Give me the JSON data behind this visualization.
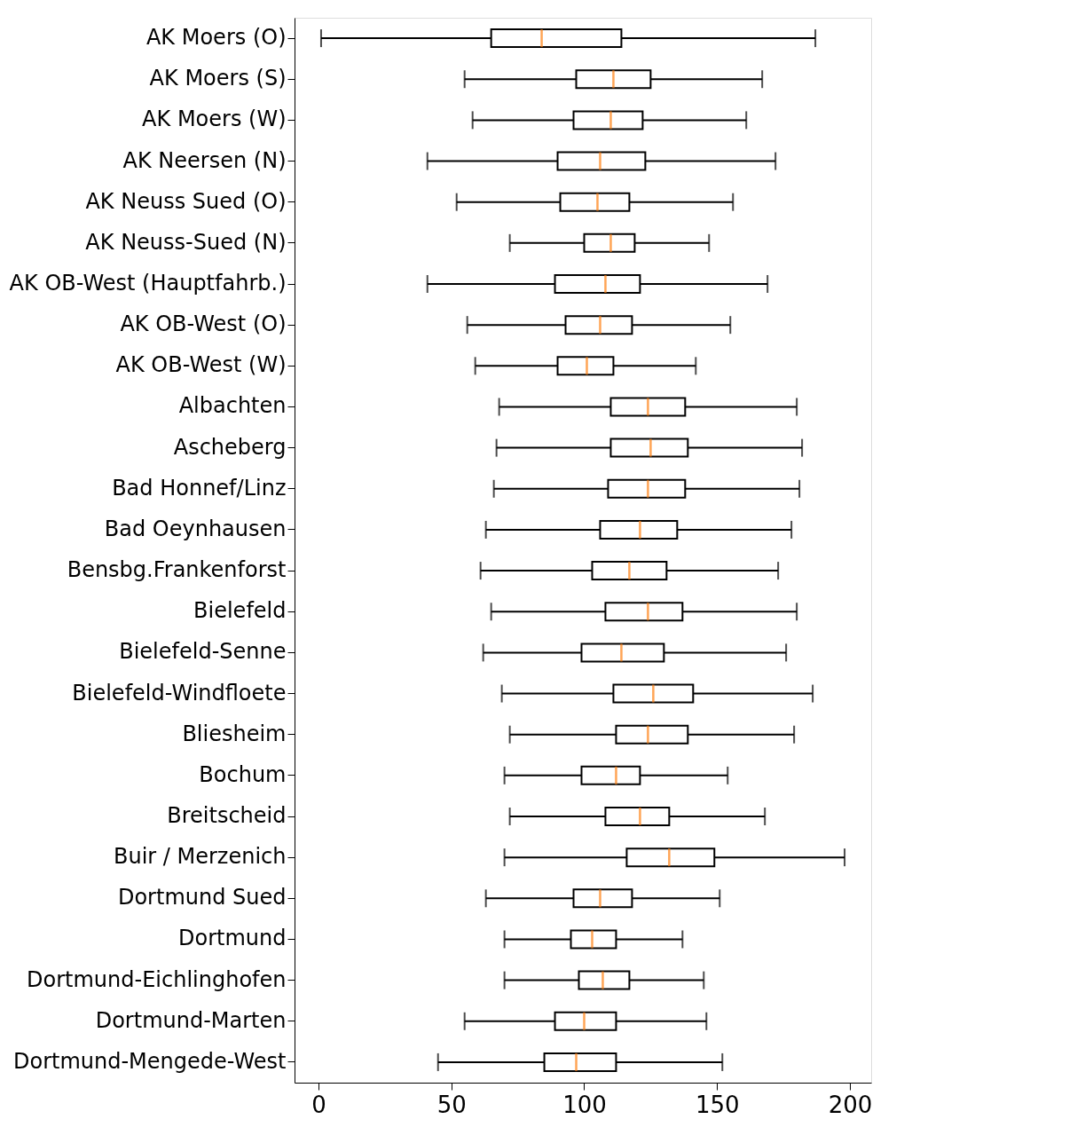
{
  "chart_data": {
    "type": "box",
    "orientation": "horizontal",
    "grid": false,
    "categories": [
      "AK Moers (O)",
      "AK Moers (S)",
      "AK Moers (W)",
      "AK Neersen (N)",
      "AK Neuss Sued (O)",
      "AK Neuss-Sued (N)",
      "AK OB-West (Hauptfahrb.)",
      "AK OB-West (O)",
      "AK OB-West (W)",
      "Albachten",
      "Ascheberg",
      "Bad Honnef/Linz",
      "Bad Oeynhausen",
      "Bensbg.Frankenforst",
      "Bielefeld",
      "Bielefeld-Senne",
      "Bielefeld-Windfloete",
      "Bliesheim",
      "Bochum",
      "Breitscheid",
      "Buir / Merzenich",
      "Dortmund Sued",
      "Dortmund",
      "Dortmund-Eichlinghofen",
      "Dortmund-Marten",
      "Dortmund-Mengede-West"
    ],
    "xlim": [
      -9,
      208
    ],
    "xticks": [
      0,
      50,
      100,
      150,
      200
    ],
    "series": [
      {
        "color": "#000000",
        "boxes": [
          {
            "low": 1,
            "q1": 65,
            "median": 84,
            "q3": 114,
            "high": 187
          },
          {
            "low": 55,
            "q1": 97,
            "median": 111,
            "q3": 125,
            "high": 167
          },
          {
            "low": 58,
            "q1": 96,
            "median": 110,
            "q3": 122,
            "high": 161
          },
          {
            "low": 41,
            "q1": 90,
            "median": 106,
            "q3": 123,
            "high": 172
          },
          {
            "low": 52,
            "q1": 91,
            "median": 105,
            "q3": 117,
            "high": 156
          },
          {
            "low": 72,
            "q1": 100,
            "median": 110,
            "q3": 119,
            "high": 147
          },
          {
            "low": 41,
            "q1": 89,
            "median": 108,
            "q3": 121,
            "high": 169
          },
          {
            "low": 56,
            "q1": 93,
            "median": 106,
            "q3": 118,
            "high": 155
          },
          {
            "low": 59,
            "q1": 90,
            "median": 101,
            "q3": 111,
            "high": 142
          },
          {
            "low": 68,
            "q1": 110,
            "median": 124,
            "q3": 138,
            "high": 180
          },
          {
            "low": 67,
            "q1": 110,
            "median": 125,
            "q3": 139,
            "high": 182
          },
          {
            "low": 66,
            "q1": 109,
            "median": 124,
            "q3": 138,
            "high": 181
          },
          {
            "low": 63,
            "q1": 106,
            "median": 121,
            "q3": 135,
            "high": 178
          },
          {
            "low": 61,
            "q1": 103,
            "median": 117,
            "q3": 131,
            "high": 173
          },
          {
            "low": 65,
            "q1": 108,
            "median": 124,
            "q3": 137,
            "high": 180
          },
          {
            "low": 62,
            "q1": 99,
            "median": 114,
            "q3": 130,
            "high": 176
          },
          {
            "low": 69,
            "q1": 111,
            "median": 126,
            "q3": 141,
            "high": 186
          },
          {
            "low": 72,
            "q1": 112,
            "median": 124,
            "q3": 139,
            "high": 179
          },
          {
            "low": 70,
            "q1": 99,
            "median": 112,
            "q3": 121,
            "high": 154
          },
          {
            "low": 72,
            "q1": 108,
            "median": 121,
            "q3": 132,
            "high": 168
          },
          {
            "low": 70,
            "q1": 116,
            "median": 132,
            "q3": 149,
            "high": 198
          },
          {
            "low": 63,
            "q1": 96,
            "median": 106,
            "q3": 118,
            "high": 151
          },
          {
            "low": 70,
            "q1": 95,
            "median": 103,
            "q3": 112,
            "high": 137
          },
          {
            "low": 70,
            "q1": 98,
            "median": 107,
            "q3": 117,
            "high": 145
          },
          {
            "low": 55,
            "q1": 89,
            "median": 100,
            "q3": 112,
            "high": 146
          },
          {
            "low": 45,
            "q1": 85,
            "median": 97,
            "q3": 112,
            "high": 152
          }
        ]
      }
    ]
  }
}
